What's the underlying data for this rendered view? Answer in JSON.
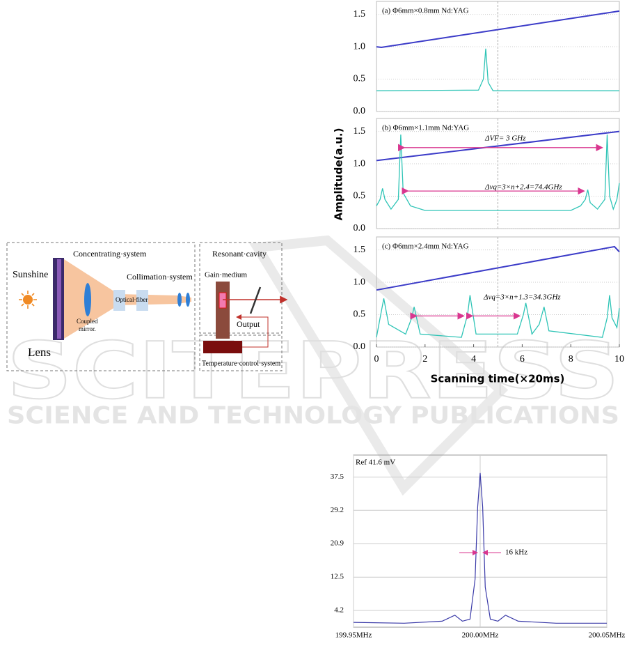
{
  "watermark": {
    "big": "SCITEPRESS",
    "small": "SCIENCE AND TECHNOLOGY PUBLICATIONS"
  },
  "diagram": {
    "sunshine": "Sunshine",
    "concentrating": "Concentrating·system",
    "collimation": "Collimation·system",
    "fiber": "Optical·fiber",
    "coupled": [
      "Coupled",
      "mirror."
    ],
    "lens": "Lens",
    "cavity": "Resonant·cavity",
    "gain": "Gain·medium",
    "output": "Output",
    "temperature": "Temperature·control·system"
  },
  "chart_data": [
    {
      "type": "line",
      "ylabel": "Amplitude(a.u.)",
      "xlabel": "Scanning time(×20ms)",
      "xlim": [
        0,
        10
      ],
      "xticks": [
        0,
        2,
        4,
        6,
        8,
        10
      ],
      "grid": true,
      "panels": [
        {
          "title": "(a)  Φ6mm×0.8mm Nd:YAG",
          "ylim": [
            0,
            1.7
          ],
          "yticks": [
            {
              "value": 0,
              "label": "0.0"
            },
            0.5,
            {
              "value": 1,
              "label": "1.0"
            },
            1.5
          ],
          "annotations": [],
          "series": [
            {
              "color": "#3b3bc8",
              "x": [
                0,
                0.2,
                10
              ],
              "values": [
                1.0,
                0.99,
                1.55
              ]
            },
            {
              "color": "#2ec4b6",
              "x": [
                0,
                4.2,
                4.4,
                4.5,
                4.6,
                4.8,
                10
              ],
              "values": [
                0.32,
                0.33,
                0.5,
                0.97,
                0.45,
                0.32,
                0.32
              ]
            }
          ]
        },
        {
          "title": "(b)  Φ6mm×1.1mm Nd:YAG",
          "ylim": [
            0,
            1.7
          ],
          "yticks": [
            {
              "value": 0,
              "label": "0.0"
            },
            0.5,
            {
              "value": 1,
              "label": "1.0"
            },
            1.5
          ],
          "annotations": [
            "ΔVF= 3 GHz",
            "Δvq=3×n+2.4=74.4GHz"
          ],
          "series": [
            {
              "color": "#3b3bc8",
              "x": [
                0,
                10
              ],
              "values": [
                1.05,
                1.5
              ]
            },
            {
              "color": "#2ec4b6",
              "x": [
                0,
                0.15,
                0.25,
                0.35,
                0.6,
                0.9,
                1.0,
                1.1,
                1.4,
                2,
                8,
                8.4,
                8.6,
                8.7,
                8.8,
                9.1,
                9.4,
                9.5,
                9.6,
                9.75,
                9.9,
                10
              ],
              "values": [
                0.35,
                0.45,
                0.62,
                0.45,
                0.3,
                0.45,
                1.45,
                0.55,
                0.35,
                0.28,
                0.28,
                0.35,
                0.45,
                0.6,
                0.4,
                0.3,
                0.45,
                1.45,
                0.5,
                0.3,
                0.45,
                0.7
              ]
            }
          ]
        },
        {
          "title": "(c)  Φ6mm×2.4mm Nd:YAG",
          "ylim": [
            0,
            1.7
          ],
          "yticks": [
            {
              "value": 0,
              "label": "0.0"
            },
            0.5,
            {
              "value": 1,
              "label": "1.0"
            },
            1.5
          ],
          "annotations": [
            "Δvq=3×n+1.3=34.3GHz"
          ],
          "series": [
            {
              "color": "#3b3bc8",
              "x": [
                0,
                9.8,
                10
              ],
              "values": [
                0.88,
                1.55,
                1.47
              ]
            },
            {
              "color": "#2ec4b6",
              "x": [
                0,
                0.15,
                0.3,
                0.5,
                1.2,
                1.45,
                1.55,
                1.8,
                3.5,
                3.75,
                3.85,
                4.1,
                5.8,
                6.05,
                6.15,
                6.4,
                6.7,
                6.9,
                7.1,
                9.3,
                9.5,
                9.6,
                9.7,
                9.9,
                10
              ],
              "values": [
                0.15,
                0.45,
                0.75,
                0.35,
                0.2,
                0.45,
                0.62,
                0.2,
                0.15,
                0.5,
                0.8,
                0.2,
                0.2,
                0.5,
                0.68,
                0.2,
                0.35,
                0.62,
                0.25,
                0.15,
                0.45,
                0.8,
                0.45,
                0.3,
                0.6
              ]
            }
          ]
        }
      ]
    },
    {
      "type": "line",
      "title": "Ref 41.6 mV",
      "annotation": "16 kHz",
      "color": "#3a3aa8",
      "grid": true,
      "xlim": [
        199.95,
        200.05
      ],
      "xticks": [
        {
          "value": 199.95,
          "label": "199.95MHz"
        },
        {
          "value": 200.0,
          "label": "200.00MHz"
        },
        {
          "value": 200.05,
          "label": "200.05MHz"
        }
      ],
      "ylim": [
        0,
        43
      ],
      "yticks": [
        4.2,
        12.5,
        20.9,
        29.2,
        37.5
      ],
      "x": [
        199.95,
        199.97,
        199.985,
        199.99,
        199.993,
        199.996,
        199.998,
        199.999,
        200.0,
        200.001,
        200.002,
        200.004,
        200.007,
        200.01,
        200.015,
        200.03,
        200.05
      ],
      "values": [
        1.2,
        1.0,
        1.5,
        3.0,
        1.5,
        2.0,
        12,
        30,
        38.5,
        30,
        10,
        2,
        1.5,
        3,
        1.5,
        1.0,
        1.0
      ]
    }
  ]
}
